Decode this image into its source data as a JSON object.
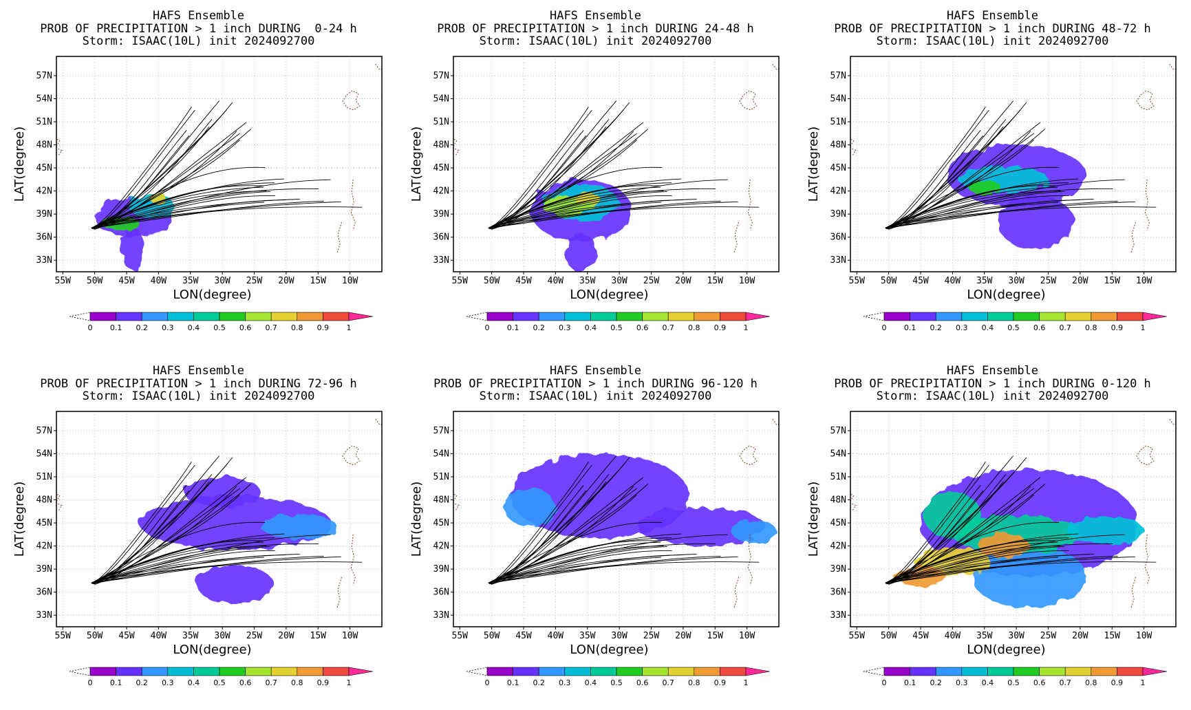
{
  "chart_data": [
    {
      "type": "heatmap",
      "title": [
        "HAFS Ensemble",
        "PROB OF PRECIPITATION > 1 inch DURING  0-24 h",
        "Storm: ISAAC(10L) init 2024092700"
      ],
      "xlabel": "LON(degree)",
      "ylabel": "LAT(degree)",
      "xticks": [
        "55W",
        "50W",
        "45W",
        "40W",
        "35W",
        "30W",
        "25W",
        "20W",
        "15W",
        "10W"
      ],
      "yticks": [
        "33N",
        "36N",
        "39N",
        "42N",
        "45N",
        "48N",
        "51N",
        "54N",
        "57N"
      ],
      "xlim": [
        -56,
        -5
      ],
      "ylim": [
        31.5,
        59.5
      ],
      "colorbar": {
        "ticks": [
          "0",
          "0.1",
          "0.2",
          "0.3",
          "0.4",
          "0.5",
          "0.6",
          "0.7",
          "0.8",
          "0.9",
          "1"
        ]
      },
      "blobs": [
        {
          "lon": -44,
          "lat": 38.5,
          "rx": 6,
          "ry": 2.5,
          "p": 0.12
        },
        {
          "lon": -41,
          "lat": 40,
          "rx": 3.5,
          "ry": 1.6,
          "p": 0.3
        },
        {
          "lon": -46,
          "lat": 37.8,
          "rx": 3,
          "ry": 0.9,
          "p": 0.55
        },
        {
          "lon": -44,
          "lat": 34.5,
          "rx": 1.8,
          "ry": 2.8,
          "p": 0.1
        },
        {
          "lon": -40,
          "lat": 41,
          "rx": 1.2,
          "ry": 0.8,
          "p": 0.7
        }
      ]
    },
    {
      "type": "heatmap",
      "title": [
        "HAFS Ensemble",
        "PROB OF PRECIPITATION > 1 inch DURING 24-48 h",
        "Storm: ISAAC(10L) init 2024092700"
      ],
      "xlabel": "LON(degree)",
      "ylabel": "LAT(degree)",
      "xticks": [
        "55W",
        "50W",
        "45W",
        "40W",
        "35W",
        "30W",
        "25W",
        "20W",
        "15W",
        "10W"
      ],
      "yticks": [
        "33N",
        "36N",
        "39N",
        "42N",
        "45N",
        "48N",
        "51N",
        "54N",
        "57N"
      ],
      "xlim": [
        -56,
        -5
      ],
      "ylim": [
        31.5,
        59.5
      ],
      "colorbar": {
        "ticks": [
          "0",
          "0.1",
          "0.2",
          "0.3",
          "0.4",
          "0.5",
          "0.6",
          "0.7",
          "0.8",
          "0.9",
          "1"
        ]
      },
      "blobs": [
        {
          "lon": -36,
          "lat": 39.5,
          "rx": 8,
          "ry": 4,
          "p": 0.12
        },
        {
          "lon": -36,
          "lat": 40.5,
          "rx": 6,
          "ry": 2.3,
          "p": 0.35
        },
        {
          "lon": -38,
          "lat": 40,
          "rx": 4,
          "ry": 1.4,
          "p": 0.65
        },
        {
          "lon": -36,
          "lat": 34,
          "rx": 2.5,
          "ry": 2.5,
          "p": 0.1
        },
        {
          "lon": -35,
          "lat": 41,
          "rx": 2,
          "ry": 0.8,
          "p": 0.72
        }
      ]
    },
    {
      "type": "heatmap",
      "title": [
        "HAFS Ensemble",
        "PROB OF PRECIPITATION > 1 inch DURING 48-72 h",
        "Storm: ISAAC(10L) init 2024092700"
      ],
      "xlabel": "LON(degree)",
      "ylabel": "LAT(degree)",
      "xticks": [
        "55W",
        "50W",
        "45W",
        "40W",
        "35W",
        "30W",
        "25W",
        "20W",
        "15W",
        "10W"
      ],
      "yticks": [
        "33N",
        "36N",
        "39N",
        "42N",
        "45N",
        "48N",
        "51N",
        "54N",
        "57N"
      ],
      "xlim": [
        -56,
        -5
      ],
      "ylim": [
        31.5,
        59.5
      ],
      "colorbar": {
        "ticks": [
          "0",
          "0.1",
          "0.2",
          "0.3",
          "0.4",
          "0.5",
          "0.6",
          "0.7",
          "0.8",
          "0.9",
          "1"
        ]
      },
      "blobs": [
        {
          "lon": -30,
          "lat": 44,
          "rx": 11,
          "ry": 4,
          "p": 0.12
        },
        {
          "lon": -27,
          "lat": 38,
          "rx": 6,
          "ry": 3.5,
          "p": 0.12
        },
        {
          "lon": -32,
          "lat": 43.5,
          "rx": 7,
          "ry": 1.8,
          "p": 0.3
        },
        {
          "lon": -35,
          "lat": 42.5,
          "rx": 2.5,
          "ry": 1,
          "p": 0.5
        }
      ]
    },
    {
      "type": "heatmap",
      "title": [
        "HAFS Ensemble",
        "PROB OF PRECIPITATION > 1 inch DURING 72-96 h",
        "Storm: ISAAC(10L) init 2024092700"
      ],
      "xlabel": "LON(degree)",
      "ylabel": "LAT(degree)",
      "xticks": [
        "55W",
        "50W",
        "45W",
        "40W",
        "35W",
        "30W",
        "25W",
        "20W",
        "15W",
        "10W"
      ],
      "yticks": [
        "33N",
        "36N",
        "39N",
        "42N",
        "45N",
        "48N",
        "51N",
        "54N",
        "57N"
      ],
      "xlim": [
        -56,
        -5
      ],
      "ylim": [
        31.5,
        59.5
      ],
      "colorbar": {
        "ticks": [
          "0",
          "0.1",
          "0.2",
          "0.3",
          "0.4",
          "0.5",
          "0.6",
          "0.7",
          "0.8",
          "0.9",
          "1"
        ]
      },
      "blobs": [
        {
          "lon": -28,
          "lat": 45,
          "rx": 15,
          "ry": 3.5,
          "p": 0.12
        },
        {
          "lon": -18,
          "lat": 44.5,
          "rx": 6,
          "ry": 1.6,
          "p": 0.25
        },
        {
          "lon": -28,
          "lat": 37,
          "rx": 6,
          "ry": 2.5,
          "p": 0.1
        },
        {
          "lon": -30,
          "lat": 49,
          "rx": 6,
          "ry": 2,
          "p": 0.1
        }
      ]
    },
    {
      "type": "heatmap",
      "title": [
        "HAFS Ensemble",
        "PROB OF PRECIPITATION > 1 inch DURING 96-120 h",
        "Storm: ISAAC(10L) init 2024092700"
      ],
      "xlabel": "LON(degree)",
      "ylabel": "LAT(degree)",
      "xticks": [
        "55W",
        "50W",
        "45W",
        "40W",
        "35W",
        "30W",
        "25W",
        "20W",
        "15W",
        "10W"
      ],
      "yticks": [
        "33N",
        "36N",
        "39N",
        "42N",
        "45N",
        "48N",
        "51N",
        "54N",
        "57N"
      ],
      "xlim": [
        -56,
        -5
      ],
      "ylim": [
        31.5,
        59.5
      ],
      "colorbar": {
        "ticks": [
          "0",
          "0.1",
          "0.2",
          "0.3",
          "0.4",
          "0.5",
          "0.6",
          "0.7",
          "0.8",
          "0.9",
          "1"
        ]
      },
      "blobs": [
        {
          "lon": -33,
          "lat": 48.5,
          "rx": 14,
          "ry": 5.5,
          "p": 0.12
        },
        {
          "lon": -17,
          "lat": 44.5,
          "rx": 10,
          "ry": 2.5,
          "p": 0.12
        },
        {
          "lon": -44,
          "lat": 47,
          "rx": 4,
          "ry": 2.5,
          "p": 0.25
        },
        {
          "lon": -9,
          "lat": 44,
          "rx": 3.5,
          "ry": 1.5,
          "p": 0.2
        }
      ]
    },
    {
      "type": "heatmap",
      "title": [
        "HAFS Ensemble",
        "PROB OF PRECIPITATION > 1 inch DURING 0-120 h",
        "Storm: ISAAC(10L) init 2024092700"
      ],
      "xlabel": "LON(degree)",
      "ylabel": "LAT(degree)",
      "xticks": [
        "55W",
        "50W",
        "45W",
        "40W",
        "35W",
        "30W",
        "25W",
        "20W",
        "15W",
        "10W"
      ],
      "yticks": [
        "33N",
        "36N",
        "39N",
        "42N",
        "45N",
        "48N",
        "51N",
        "54N",
        "57N"
      ],
      "xlim": [
        -56,
        -5
      ],
      "ylim": [
        31.5,
        59.5
      ],
      "colorbar": {
        "ticks": [
          "0",
          "0.1",
          "0.2",
          "0.3",
          "0.4",
          "0.5",
          "0.6",
          "0.7",
          "0.8",
          "0.9",
          "1"
        ]
      },
      "blobs": [
        {
          "lon": -28,
          "lat": 45,
          "rx": 17,
          "ry": 7,
          "p": 0.12
        },
        {
          "lon": -28,
          "lat": 38,
          "rx": 9,
          "ry": 4,
          "p": 0.2
        },
        {
          "lon": -40,
          "lat": 46,
          "rx": 4.5,
          "ry": 3,
          "p": 0.4
        },
        {
          "lon": -30,
          "lat": 43.5,
          "rx": 10,
          "ry": 2.5,
          "p": 0.45
        },
        {
          "lon": -40,
          "lat": 40,
          "rx": 6,
          "ry": 1.8,
          "p": 0.7
        },
        {
          "lon": -45,
          "lat": 38,
          "rx": 4,
          "ry": 1.2,
          "p": 0.85
        },
        {
          "lon": -32,
          "lat": 42,
          "rx": 4,
          "ry": 1.6,
          "p": 0.82
        },
        {
          "lon": -16,
          "lat": 44,
          "rx": 6,
          "ry": 1.8,
          "p": 0.3
        }
      ]
    }
  ],
  "colors": {
    "bins": [
      "#9900cc",
      "#6633ff",
      "#3399ff",
      "#00c0d8",
      "#00cc99",
      "#22cc22",
      "#a6e633",
      "#e6d133",
      "#f09a33",
      "#f04a3c",
      "#ff2a9a"
    ]
  }
}
